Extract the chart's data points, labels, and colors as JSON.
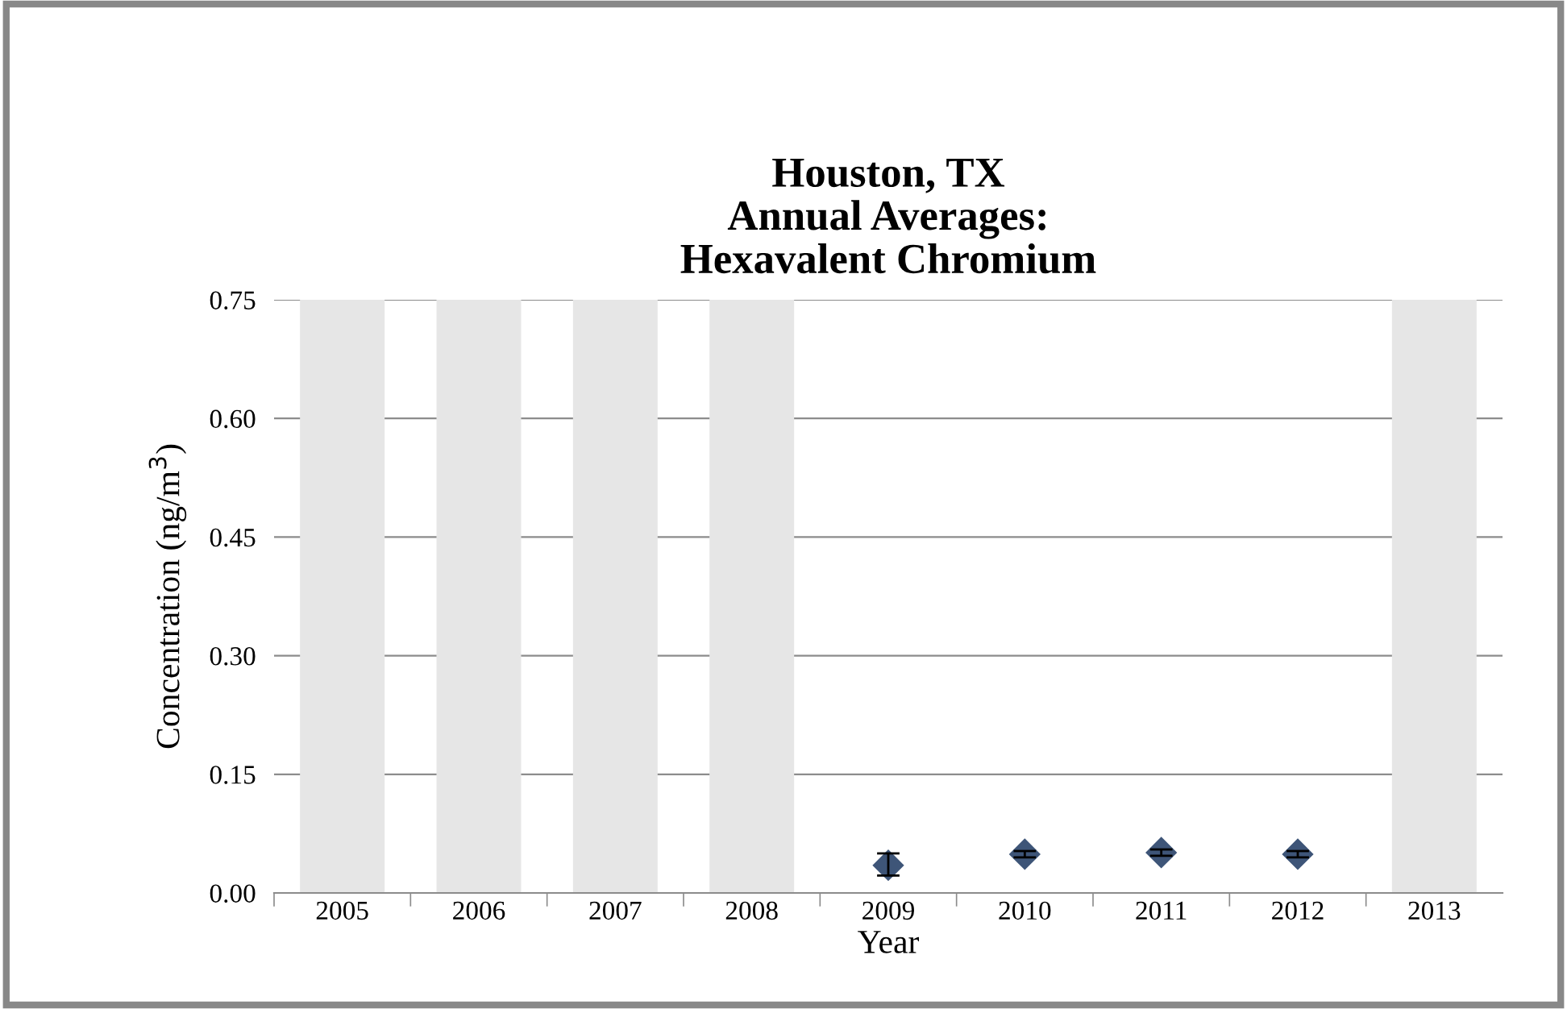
{
  "chart_data": {
    "type": "scatter",
    "title": "Houston, TX\nAnnual Averages:\nHexavalent Chromium",
    "xlabel": "Year",
    "ylabel": "Concentration (ng/m$^{3}$)",
    "categories": [
      "2005",
      "2006",
      "2007",
      "2008",
      "2009",
      "2010",
      "2011",
      "2012",
      "2013"
    ],
    "series": [
      {
        "type": "bar",
        "color": "#e6e6e6",
        "values": [
          0.75,
          0.75,
          0.75,
          0.75,
          null,
          null,
          null,
          null,
          0.75
        ]
      },
      {
        "color": "#3e5578",
        "marker": "diamond",
        "values": [
          null,
          null,
          null,
          null,
          0.035,
          0.049,
          0.051,
          0.049,
          null
        ],
        "errors": [
          null,
          null,
          null,
          null,
          [
            0.022,
            0.05
          ],
          0.004,
          0.004,
          0.004,
          null
        ]
      }
    ],
    "ylim": [
      0,
      0.75
    ],
    "yticks": [
      {
        "value": 0,
        "label": "0.00"
      },
      {
        "value": 0.15,
        "label": "0.15"
      },
      {
        "value": 0.3,
        "label": "0.30"
      },
      {
        "value": 0.45,
        "label": "0.45"
      },
      {
        "value": 0.6,
        "label": "0.60"
      },
      {
        "value": 0.75,
        "label": "0.75"
      }
    ],
    "grid": "y",
    "legend": false
  }
}
